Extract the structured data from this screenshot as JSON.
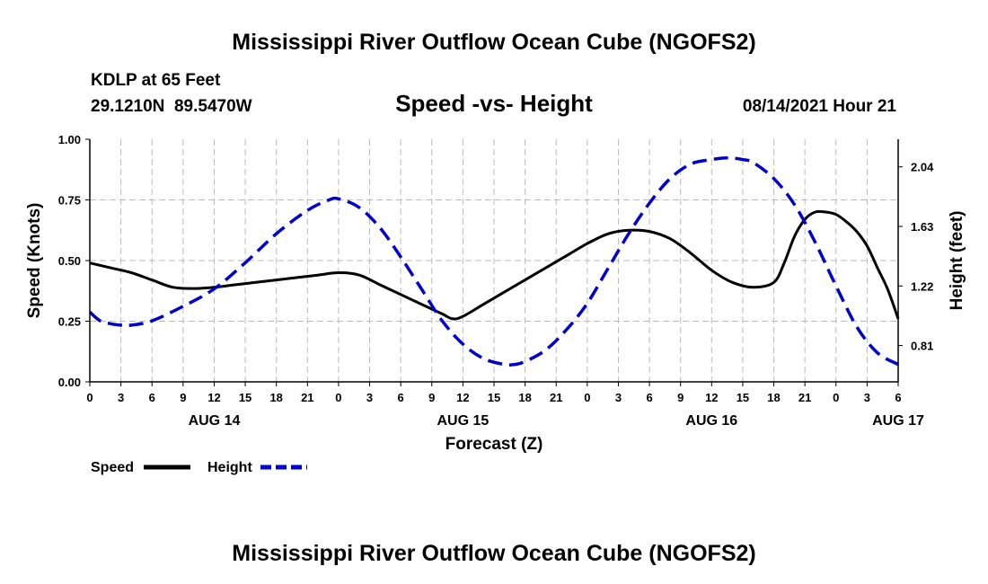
{
  "header": {
    "title": "Mississippi River Outflow Ocean Cube (NGOFS2)",
    "station": "KDLP at 65 Feet",
    "coords": "29.1210N  89.5470W",
    "chart_title": "Speed -vs- Height",
    "datetime": "08/14/2021 Hour 21"
  },
  "footer": {
    "title": "Mississippi River Outflow Ocean Cube (NGOFS2)"
  },
  "chart_data": {
    "type": "line",
    "title": "Speed -vs- Height",
    "xlabel": "Forecast (Z)",
    "ylabel": "Speed (Knots)",
    "y2label": "Height (feet)",
    "xlim": [
      0,
      78
    ],
    "ylim": [
      0,
      1
    ],
    "y2lim": [
      0.56,
      2.23
    ],
    "x_ticks": [
      0,
      3,
      6,
      9,
      12,
      15,
      18,
      21,
      24,
      27,
      30,
      33,
      36,
      39,
      42,
      45,
      48,
      51,
      54,
      57,
      60,
      63,
      66,
      69,
      72,
      75,
      78
    ],
    "x_tick_labels": [
      "0",
      "3",
      "6",
      "9",
      "12",
      "15",
      "18",
      "21",
      "0",
      "3",
      "6",
      "9",
      "12",
      "15",
      "18",
      "21",
      "0",
      "3",
      "6",
      "9",
      "12",
      "15",
      "18",
      "21",
      "0",
      "3",
      "6"
    ],
    "day_labels": [
      {
        "x": 12,
        "label": "AUG 14"
      },
      {
        "x": 36,
        "label": "AUG 15"
      },
      {
        "x": 60,
        "label": "AUG 16"
      },
      {
        "x": 78,
        "label": "AUG 17"
      }
    ],
    "y_ticks": [
      0.0,
      0.25,
      0.5,
      0.75,
      1.0
    ],
    "y_tick_labels": [
      "0.00",
      "0.25",
      "0.50",
      "0.75",
      "1.00"
    ],
    "y2_ticks": [
      0.81,
      1.22,
      1.63,
      2.04
    ],
    "y2_tick_labels": [
      "0.81",
      "1.22",
      "1.63",
      "2.04"
    ],
    "grid": true,
    "series": [
      {
        "name": "Speed",
        "axis": "left",
        "color": "#000000",
        "dashed": false,
        "x": [
          0,
          2,
          4,
          6,
          8,
          10,
          12,
          14,
          16,
          18,
          20,
          22,
          24,
          26,
          28,
          30,
          32,
          34,
          35,
          36,
          38,
          40,
          42,
          44,
          46,
          48,
          50,
          52,
          54,
          56,
          58,
          60,
          62,
          64,
          66,
          67,
          68,
          69,
          70,
          71,
          72,
          73,
          74,
          75,
          76,
          77,
          78
        ],
        "values": [
          0.49,
          0.47,
          0.45,
          0.42,
          0.39,
          0.385,
          0.39,
          0.4,
          0.41,
          0.42,
          0.43,
          0.44,
          0.45,
          0.44,
          0.4,
          0.36,
          0.32,
          0.28,
          0.26,
          0.27,
          0.32,
          0.37,
          0.42,
          0.47,
          0.52,
          0.57,
          0.61,
          0.625,
          0.62,
          0.59,
          0.53,
          0.46,
          0.41,
          0.39,
          0.41,
          0.49,
          0.6,
          0.67,
          0.7,
          0.7,
          0.69,
          0.66,
          0.62,
          0.56,
          0.47,
          0.38,
          0.26
        ]
      },
      {
        "name": "Height",
        "axis": "right",
        "color": "#0000cc",
        "dashed": true,
        "x": [
          0,
          1,
          2,
          3,
          4,
          6,
          9,
          12,
          15,
          18,
          21,
          23,
          24,
          26,
          28,
          30,
          32,
          34,
          36,
          38,
          40,
          41,
          42,
          44,
          46,
          48,
          50,
          52,
          54,
          56,
          58,
          60,
          61,
          62,
          63,
          64,
          66,
          68,
          70,
          72,
          74,
          76,
          78
        ],
        "values": [
          1.04,
          0.98,
          0.96,
          0.95,
          0.95,
          0.98,
          1.08,
          1.2,
          1.38,
          1.58,
          1.74,
          1.81,
          1.82,
          1.76,
          1.62,
          1.42,
          1.2,
          0.98,
          0.82,
          0.72,
          0.68,
          0.68,
          0.7,
          0.78,
          0.92,
          1.1,
          1.34,
          1.58,
          1.79,
          1.96,
          2.06,
          2.09,
          2.1,
          2.1,
          2.09,
          2.07,
          1.96,
          1.78,
          1.52,
          1.22,
          0.94,
          0.76,
          0.68
        ]
      }
    ]
  },
  "legend": {
    "items": [
      {
        "label": "Speed",
        "color": "#000000",
        "dashed": false
      },
      {
        "label": "Height",
        "color": "#0000cc",
        "dashed": true
      }
    ]
  }
}
